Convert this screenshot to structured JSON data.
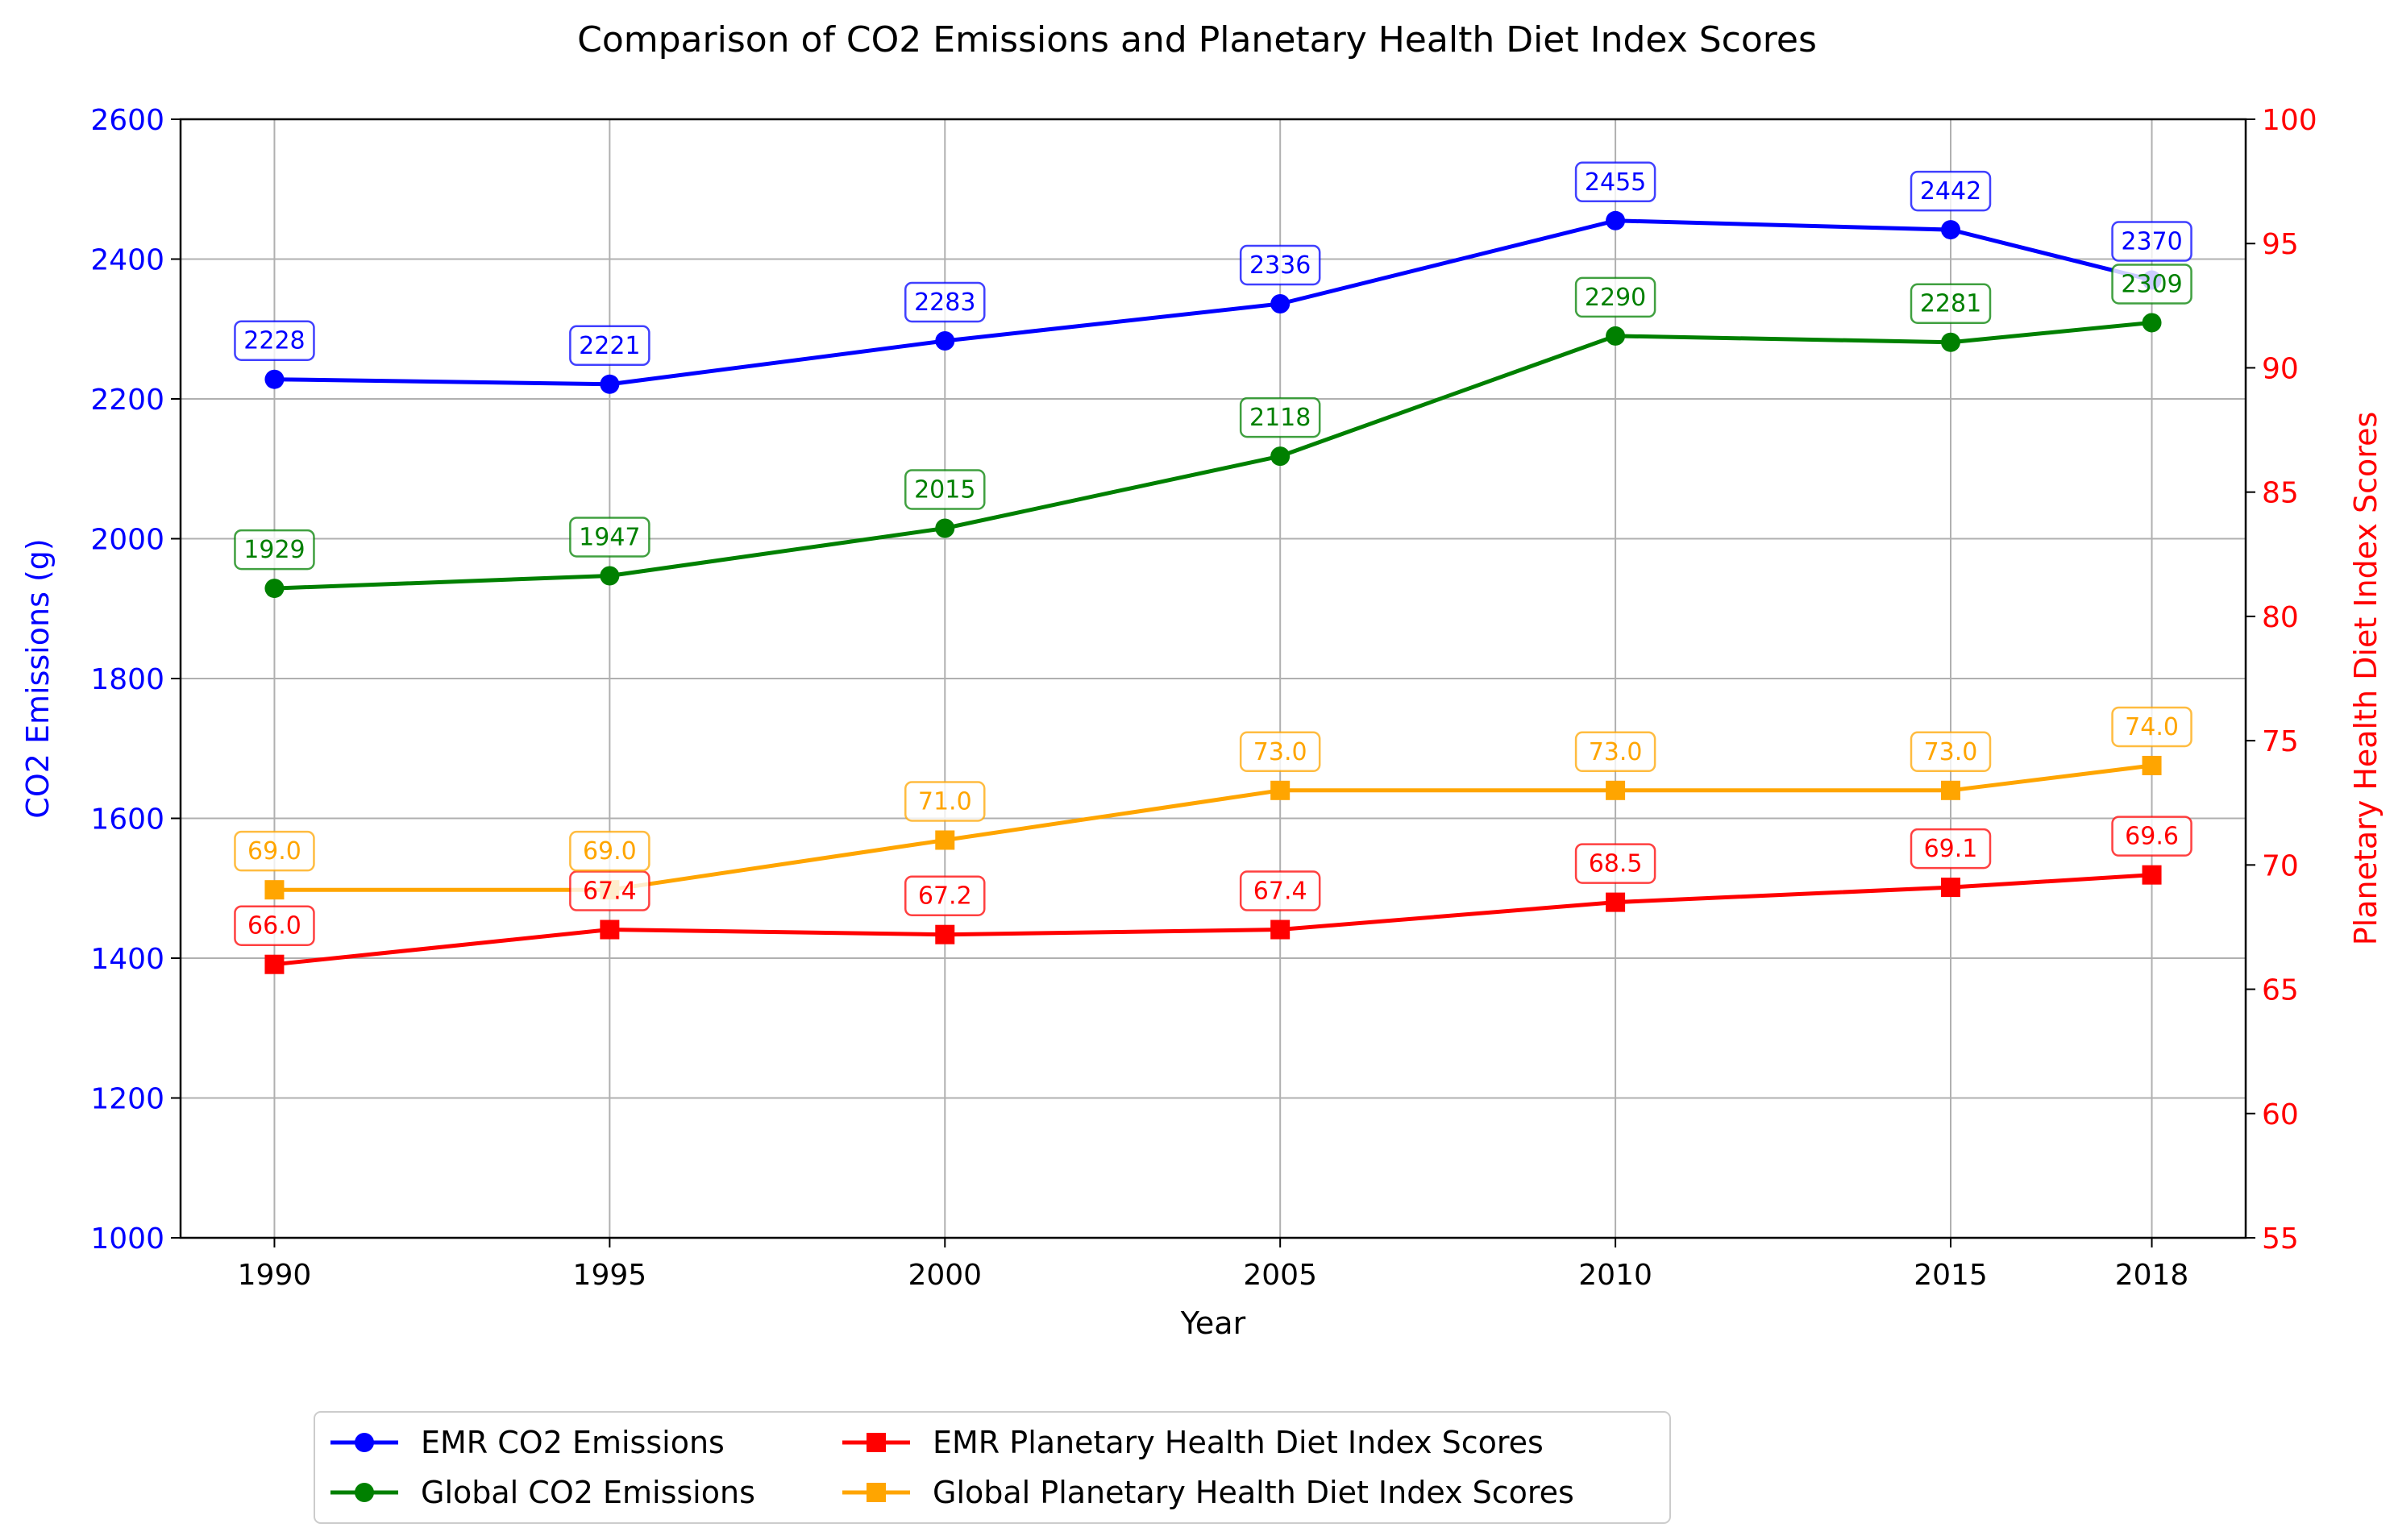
{
  "chart_data": {
    "type": "line",
    "title": "Comparison of CO2 Emissions and Planetary Health Diet Index Scores",
    "xlabel": "Year",
    "ylabel": "CO2 Emissions (g)",
    "ylabel_right": "Planetary Health Diet Index Scores",
    "x": [
      1990,
      1995,
      2000,
      2005,
      2010,
      2015,
      2018
    ],
    "xlim": [
      1988.6,
      2019.4
    ],
    "ylim": [
      1000,
      2600
    ],
    "ylim_right": [
      55,
      100
    ],
    "yticks": [
      1000,
      1200,
      1400,
      1600,
      1800,
      2000,
      2200,
      2400,
      2600
    ],
    "yticks_right": [
      55,
      60,
      65,
      70,
      75,
      80,
      85,
      90,
      95,
      100
    ],
    "grid": true,
    "legend_position": "bottom-center",
    "series": [
      {
        "name": "EMR CO2 Emissions",
        "axis": "left",
        "marker": "circle",
        "color": "#0000ff",
        "values": [
          2228,
          2221,
          2283,
          2336,
          2455,
          2442,
          2370
        ],
        "labels": [
          "2228",
          "2221",
          "2283",
          "2336",
          "2455",
          "2442",
          "2370"
        ]
      },
      {
        "name": "Global CO2 Emissions",
        "axis": "left",
        "marker": "circle",
        "color": "#008000",
        "values": [
          1929,
          1947,
          2015,
          2118,
          2290,
          2281,
          2309
        ],
        "labels": [
          "1929",
          "1947",
          "2015",
          "2118",
          "2290",
          "2281",
          "2309"
        ]
      },
      {
        "name": "EMR Planetary Health Diet Index Scores",
        "axis": "right",
        "marker": "square",
        "color": "#ff0000",
        "values": [
          66.0,
          67.4,
          67.2,
          67.4,
          68.5,
          69.1,
          69.6
        ],
        "labels": [
          "66.0",
          "67.4",
          "67.2",
          "67.4",
          "68.5",
          "69.1",
          "69.6"
        ]
      },
      {
        "name": "Global Planetary Health Diet Index Scores",
        "axis": "right",
        "marker": "square",
        "color": "#ffa500",
        "values": [
          69.0,
          69.0,
          71.0,
          73.0,
          73.0,
          73.0,
          74.0
        ],
        "labels": [
          "69.0",
          "69.0",
          "71.0",
          "73.0",
          "73.0",
          "73.0",
          "74.0"
        ]
      }
    ]
  }
}
